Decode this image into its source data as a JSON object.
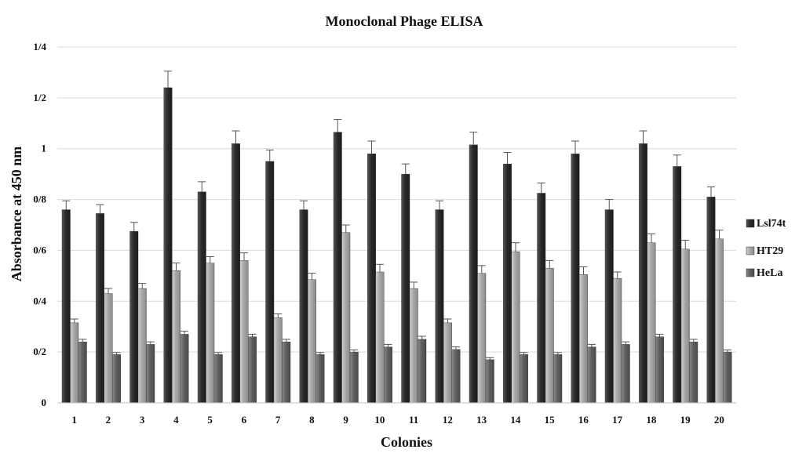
{
  "chart_data": {
    "type": "bar",
    "title": "Monoclonal Phage ELISA",
    "xlabel": "Colonies",
    "ylabel": "Absorbance at 450 nm",
    "ylim": [
      0,
      1.4
    ],
    "ytick_values": [
      0,
      0.2,
      0.4,
      0.6,
      0.8,
      1.0,
      1.2,
      1.4
    ],
    "ytick_labels": [
      "0",
      "0/2",
      "0/4",
      "0/6",
      "0/8",
      "1",
      "1/2",
      "1/4"
    ],
    "grid": true,
    "legend_position": "right",
    "categories": [
      "1",
      "2",
      "3",
      "4",
      "5",
      "6",
      "7",
      "8",
      "9",
      "10",
      "11",
      "12",
      "13",
      "14",
      "15",
      "16",
      "17",
      "18",
      "19",
      "20"
    ],
    "series": [
      {
        "name": "Lsl74t",
        "color": "#3a3a3a",
        "values": [
          0.76,
          0.745,
          0.675,
          1.24,
          0.83,
          1.02,
          0.95,
          0.76,
          1.065,
          0.98,
          0.9,
          0.76,
          1.015,
          0.94,
          0.825,
          0.98,
          0.76,
          1.02,
          0.93,
          0.81
        ],
        "errors": [
          0.035,
          0.035,
          0.035,
          0.065,
          0.04,
          0.05,
          0.045,
          0.035,
          0.05,
          0.05,
          0.04,
          0.035,
          0.05,
          0.045,
          0.04,
          0.05,
          0.04,
          0.05,
          0.045,
          0.04
        ]
      },
      {
        "name": "HT29",
        "color": "#a9a9a9",
        "values": [
          0.315,
          0.43,
          0.45,
          0.52,
          0.55,
          0.56,
          0.335,
          0.485,
          0.67,
          0.515,
          0.45,
          0.315,
          0.51,
          0.595,
          0.53,
          0.505,
          0.49,
          0.63,
          0.605,
          0.645
        ],
        "errors": [
          0.015,
          0.02,
          0.02,
          0.03,
          0.025,
          0.03,
          0.015,
          0.025,
          0.03,
          0.03,
          0.025,
          0.015,
          0.03,
          0.035,
          0.03,
          0.03,
          0.025,
          0.035,
          0.035,
          0.035
        ]
      },
      {
        "name": "HeLa",
        "color": "#6a6a6a",
        "values": [
          0.24,
          0.19,
          0.23,
          0.27,
          0.19,
          0.26,
          0.24,
          0.19,
          0.2,
          0.22,
          0.25,
          0.21,
          0.17,
          0.19,
          0.19,
          0.22,
          0.23,
          0.26,
          0.24,
          0.2
        ],
        "errors": [
          0.01,
          0.008,
          0.01,
          0.012,
          0.008,
          0.01,
          0.01,
          0.008,
          0.008,
          0.01,
          0.012,
          0.01,
          0.008,
          0.008,
          0.008,
          0.01,
          0.01,
          0.01,
          0.01,
          0.008
        ]
      }
    ]
  }
}
